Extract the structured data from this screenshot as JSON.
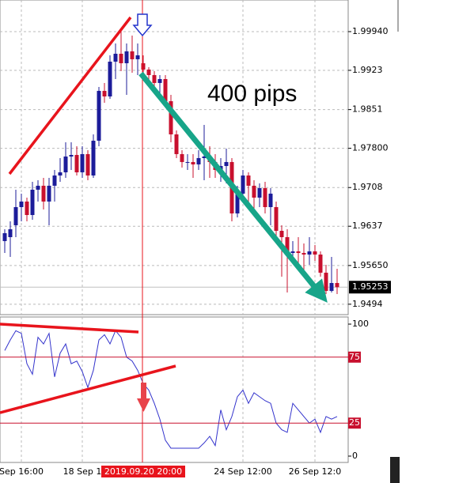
{
  "chart_data": [
    {
      "type": "candlestick",
      "categories": [
        null,
        null,
        null,
        "Sep 16:00",
        null,
        null,
        null,
        null,
        null,
        null,
        null,
        null,
        null,
        null,
        "18 Sep 1",
        null,
        null,
        null,
        null,
        null,
        null,
        null,
        null,
        null,
        null,
        null,
        null,
        null,
        null,
        null,
        null,
        null,
        null,
        null,
        null,
        null,
        null,
        null,
        null,
        null,
        null,
        null,
        null,
        "24 Sep 12:00",
        null,
        null,
        null,
        null,
        null,
        null,
        null,
        null,
        null,
        null,
        null,
        null,
        "26 Sep 12:0",
        null,
        null,
        null,
        null
      ],
      "open": [
        1.96098,
        1.9617,
        1.96388,
        1.96721,
        1.96823,
        1.96576,
        1.9704,
        1.97113,
        1.96823,
        1.97113,
        1.97301,
        1.97359,
        1.97649,
        1.97678,
        1.97359,
        1.97693,
        1.97301,
        1.97939,
        1.98853,
        1.98751,
        1.99389,
        1.99534,
        1.9936,
        1.99578,
        1.99433,
        1.9936,
        1.99244,
        1.99143,
        1.98998,
        1.9907,
        1.98664,
        1.98055,
        1.97693,
        1.97548,
        1.97548,
        1.97504,
        1.9762,
        1.97649,
        1.97548,
        1.97403,
        1.97475,
        1.97548,
        1.96605,
        1.96968,
        1.97301,
        1.97113,
        1.96895,
        1.97069,
        1.96721,
        1.96721,
        1.96286,
        1.9617,
        1.9588,
        1.95909,
        1.9588,
        1.95851,
        1.95909,
        1.95851,
        1.95518,
        1.95184,
        1.95329
      ],
      "high": [
        1.96315,
        1.9646,
        1.9704,
        1.96968,
        1.96895,
        1.97185,
        1.97214,
        1.97258,
        1.97258,
        1.97403,
        1.9762,
        1.9791,
        1.9791,
        1.97838,
        1.97838,
        1.97765,
        1.98055,
        1.98925,
        1.98998,
        1.99505,
        1.99723,
        1.9994,
        1.99723,
        1.99868,
        1.99723,
        1.99505,
        1.99288,
        1.99215,
        1.99143,
        1.99143,
        1.9878,
        1.98128,
        1.97765,
        1.97693,
        1.97693,
        1.97765,
        1.98229,
        1.97838,
        1.97693,
        1.9762,
        1.97794,
        1.9762,
        1.97113,
        1.97403,
        1.97359,
        1.97214,
        1.97156,
        1.97185,
        1.97069,
        1.96823,
        1.96388,
        1.96315,
        1.96098,
        1.9617,
        1.96054,
        1.9617,
        1.96025,
        1.95909,
        1.95663,
        1.95808,
        1.9559
      ],
      "low": [
        1.9588,
        1.95808,
        1.9617,
        1.9646,
        1.9646,
        1.96489,
        1.96823,
        1.96678,
        1.96388,
        1.96823,
        1.97185,
        1.97258,
        1.97403,
        1.97301,
        1.97258,
        1.97214,
        1.97258,
        1.97838,
        1.98635,
        1.98708,
        1.9907,
        1.99215,
        1.9878,
        1.99186,
        1.99143,
        1.99143,
        1.98925,
        1.98896,
        1.98708,
        1.98563,
        1.9791,
        1.9762,
        1.97446,
        1.97403,
        1.97258,
        1.97403,
        1.97214,
        1.97258,
        1.97258,
        1.97185,
        1.97156,
        1.9646,
        1.96533,
        1.96823,
        1.96678,
        1.96605,
        1.96721,
        1.96605,
        1.96388,
        1.96199,
        1.95445,
        1.95155,
        1.95735,
        1.9559,
        1.95518,
        1.95663,
        1.95735,
        1.95445,
        1.95126,
        1.95155,
        1.95126
      ],
      "close": [
        1.96243,
        1.96315,
        1.96721,
        1.96823,
        1.96576,
        1.9704,
        1.97113,
        1.96823,
        1.97113,
        1.97301,
        1.97359,
        1.97649,
        1.97678,
        1.97359,
        1.97693,
        1.97301,
        1.97939,
        1.98853,
        1.98751,
        1.99389,
        1.99534,
        1.9936,
        1.99578,
        1.99433,
        1.99505,
        1.99244,
        1.99143,
        1.98998,
        1.9907,
        1.98664,
        1.98055,
        1.97693,
        1.97548,
        1.97548,
        1.97504,
        1.9762,
        1.97649,
        1.97548,
        1.97403,
        1.97475,
        1.97548,
        1.96605,
        1.96968,
        1.97301,
        1.97113,
        1.96895,
        1.97069,
        1.96721,
        1.96968,
        1.96286,
        1.9617,
        1.9588,
        1.95909,
        1.9588,
        1.95851,
        1.95909,
        1.95851,
        1.95518,
        1.95184,
        1.95329,
        1.95253
      ],
      "up_color": "#1c1c9a",
      "down_color": "#c8102e",
      "ylim": [
        1.94749,
        2.0052
      ],
      "yticks": [
        {
          "value": 1.9994,
          "label": "1.99940"
        },
        1.9923,
        1.9851,
        {
          "value": 1.978,
          "label": "1.97800"
        },
        1.9708,
        1.9637,
        {
          "value": 1.9565,
          "label": "1.95650"
        },
        1.9494
      ],
      "last_price": 1.95253,
      "cursor_label": "2019.09.20 20:00",
      "annotation": "400 pips",
      "grid": true
    },
    {
      "type": "line",
      "values": [
        80,
        88,
        95,
        93,
        70,
        62,
        90,
        85,
        93,
        60,
        78,
        85,
        70,
        72,
        64,
        52,
        65,
        88,
        92,
        85,
        95,
        90,
        75,
        72,
        65,
        55,
        50,
        40,
        28,
        12,
        6,
        6,
        6,
        6,
        6,
        6,
        10,
        15,
        8,
        35,
        20,
        30,
        45,
        50,
        40,
        48,
        45,
        42,
        40,
        25,
        20,
        18,
        40,
        35,
        30,
        25,
        28,
        18,
        30,
        28,
        30
      ],
      "color": "#3333cc",
      "ylim": [
        -4.8,
        105.4
      ],
      "yticks": [
        0,
        25,
        75,
        100
      ],
      "levels": [
        25,
        75
      ],
      "level_color": "#c8102e"
    }
  ]
}
